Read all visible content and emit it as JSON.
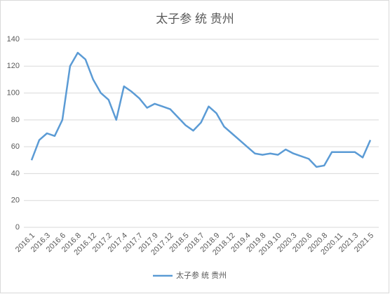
{
  "chart_data": {
    "type": "line",
    "title": "太子参 统 贵州",
    "categories": [
      "2016.1",
      null,
      "2016.3",
      null,
      "2016.6",
      null,
      "2016.8",
      null,
      "2016.12",
      null,
      "2017.2",
      null,
      "2017.4",
      null,
      "2017.7",
      null,
      "2017.9",
      null,
      "2017.12",
      null,
      "2018.5",
      null,
      "2018.7",
      null,
      "2018.9",
      null,
      "2018.12",
      null,
      "2019.4",
      null,
      "2019.8",
      null,
      "2019.10",
      null,
      "2020.3",
      null,
      "2020.6",
      null,
      "2020.8",
      null,
      "2020.11",
      null,
      "2021.3",
      null,
      "2021.5"
    ],
    "series": [
      {
        "name": "太子参 统 贵州",
        "color": "#5b9bd5",
        "values": [
          50,
          65,
          70,
          68,
          80,
          120,
          130,
          125,
          110,
          100,
          95,
          80,
          105,
          101,
          96,
          89,
          92,
          90,
          88,
          82,
          76,
          72,
          78,
          90,
          85,
          75,
          70,
          65,
          60,
          55,
          54,
          55,
          54,
          58,
          55,
          53,
          51,
          45,
          46,
          56,
          56,
          56,
          56,
          52,
          65
        ]
      }
    ],
    "ylim": [
      0,
      140
    ],
    "yticks": [
      0,
      20,
      40,
      60,
      80,
      100,
      120,
      140
    ],
    "grid": true,
    "legend": "bottom"
  }
}
